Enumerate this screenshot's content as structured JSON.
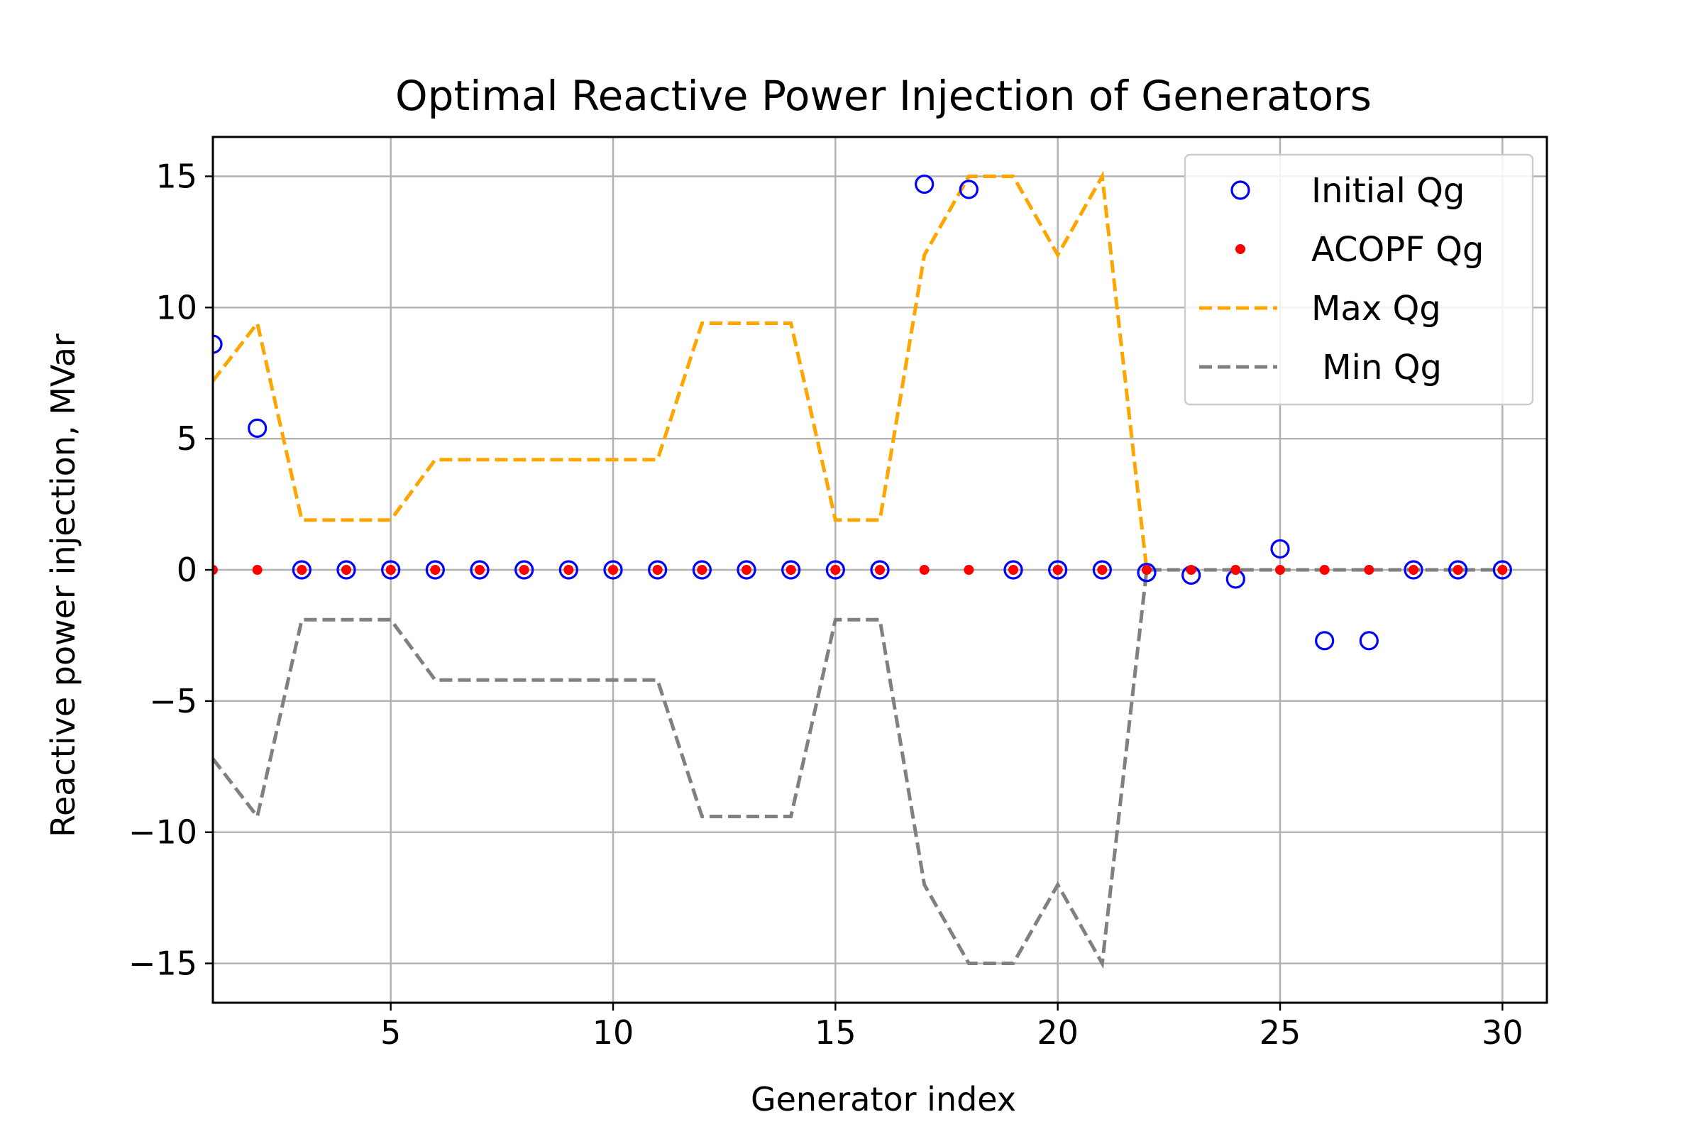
{
  "chart_data": {
    "type": "scatter",
    "title": "Optimal Reactive Power Injection of Generators",
    "xlabel": "Generator index",
    "ylabel": "Reactive power injection, MVar",
    "xlim": [
      1,
      31
    ],
    "ylim": [
      -16.5,
      16.5
    ],
    "xticks": [
      5,
      10,
      15,
      20,
      25,
      30
    ],
    "yticks": [
      -15,
      -10,
      -5,
      0,
      5,
      10,
      15
    ],
    "xtick_labels": [
      "5",
      "10",
      "15",
      "20",
      "25",
      "30"
    ],
    "ytick_labels": [
      "−15",
      "−10",
      "−5",
      "0",
      "5",
      "10",
      "15"
    ],
    "grid": true,
    "legend_position": "top-right",
    "x": [
      1,
      2,
      3,
      4,
      5,
      6,
      7,
      8,
      9,
      10,
      11,
      12,
      13,
      14,
      15,
      16,
      17,
      18,
      19,
      20,
      21,
      22,
      23,
      24,
      25,
      26,
      27,
      28,
      29,
      30
    ],
    "series": [
      {
        "name": "Initial Qg",
        "legend_label": "Initial Qg",
        "kind": "marker-open-circle",
        "color": "#0000ff",
        "values": [
          8.6,
          5.4,
          0,
          0,
          0,
          0,
          0,
          0,
          0,
          0,
          0,
          0,
          0,
          0,
          0,
          0,
          14.7,
          14.5,
          0,
          0,
          0,
          -0.1,
          -0.2,
          -0.35,
          0.8,
          -2.7,
          -2.7,
          0,
          0,
          0
        ]
      },
      {
        "name": "ACOPF Qg",
        "legend_label": "ACOPF Qg",
        "kind": "marker-dot",
        "color": "#ff0000",
        "values": [
          0,
          0,
          0,
          0,
          0,
          0,
          0,
          0,
          0,
          0,
          0,
          0,
          0,
          0,
          0,
          0,
          0,
          0,
          0,
          0,
          0,
          0,
          0,
          0,
          0,
          0,
          0,
          0,
          0,
          0
        ]
      },
      {
        "name": "Max Qg",
        "legend_label": "Max Qg",
        "kind": "dashed-line",
        "color": "#ffa500",
        "values": [
          7.2,
          9.4,
          1.9,
          1.9,
          1.9,
          4.2,
          4.2,
          4.2,
          4.2,
          4.2,
          4.2,
          9.4,
          9.4,
          9.4,
          1.9,
          1.9,
          12,
          15,
          15,
          12,
          15,
          0,
          0,
          0,
          0,
          0,
          0,
          0,
          0,
          0
        ]
      },
      {
        "name": "Min Qg",
        "legend_label": " Min Qg",
        "kind": "dashed-line",
        "color": "#808080",
        "values": [
          -7.2,
          -9.4,
          -1.9,
          -1.9,
          -1.9,
          -4.2,
          -4.2,
          -4.2,
          -4.2,
          -4.2,
          -4.2,
          -9.4,
          -9.4,
          -9.4,
          -1.9,
          -1.9,
          -12,
          -15,
          -15,
          -12,
          -15,
          0,
          0,
          0,
          0,
          0,
          0,
          0,
          0,
          0
        ]
      }
    ]
  }
}
